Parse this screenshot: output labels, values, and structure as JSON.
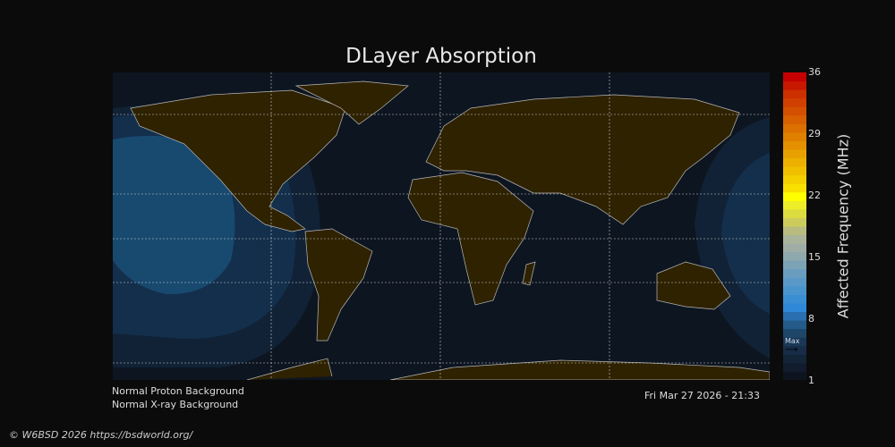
{
  "title": "DLayer Absorption",
  "colorbar": {
    "label": "Affected Frequency (MHz)",
    "ticks": [
      "36",
      "29",
      "22",
      "15",
      "8",
      "1"
    ],
    "min": 1,
    "max": 36,
    "max_marker_label": "Max",
    "max_marker_value": 4,
    "colors": [
      "#0d1420",
      "#111c2c",
      "#142438",
      "#172c46",
      "#1a3756",
      "#1e4668",
      "#235a88",
      "#2a70b0",
      "#2f88d8",
      "#3a8fd4",
      "#4a94ce",
      "#5a98c8",
      "#6a9cc0",
      "#7ca2b6",
      "#8ea8ae",
      "#a0aca6",
      "#aab49a",
      "#b8bc80",
      "#cccc5c",
      "#dcdc40",
      "#eeee28",
      "#ffff00",
      "#f8e000",
      "#f4d000",
      "#f0c000",
      "#ecb000",
      "#e8a000",
      "#e49000",
      "#e08000",
      "#dc7000",
      "#d86000",
      "#d45000",
      "#d04000",
      "#cc3000",
      "#c81800",
      "#c40000"
    ]
  },
  "map": {
    "ocean": "#0d1520",
    "land": "#2e2200",
    "coast": "#b8b8b8"
  },
  "status": {
    "proton": "Normal Proton Background",
    "xray": "Normal X-ray Background",
    "timestamp": "Fri Mar 27 2026 - 21:33"
  },
  "credit": "© W6BSD 2026 https://bsdworld.org/"
}
